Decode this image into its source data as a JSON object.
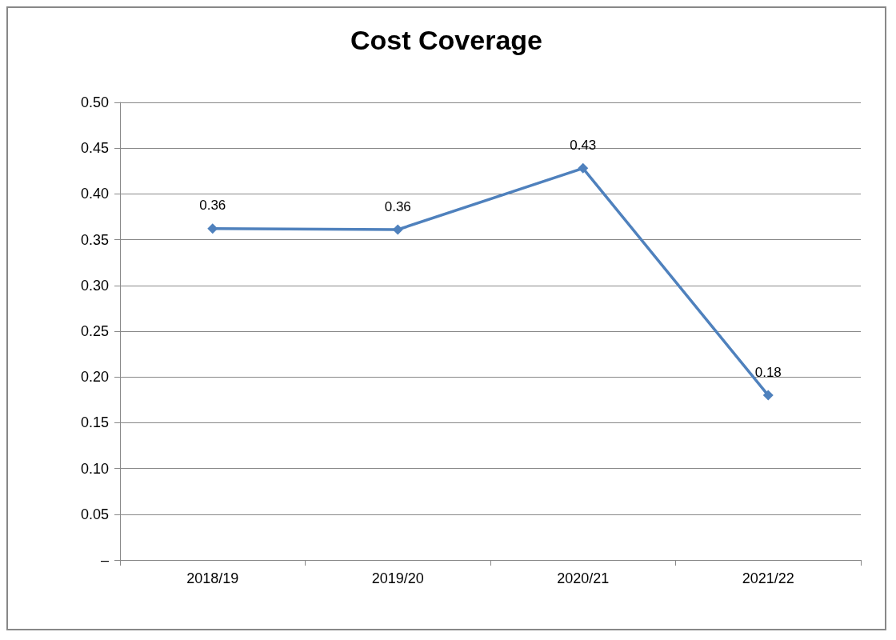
{
  "chart_data": {
    "type": "line",
    "title": "Cost Coverage",
    "categories": [
      "2018/19",
      "2019/20",
      "2020/21",
      "2021/22"
    ],
    "series": [
      {
        "color": "#4f81bd",
        "values": [
          0.362,
          0.361,
          0.428,
          0.18
        ],
        "value_labels": [
          "0.36",
          "0.36",
          "0.43",
          "0.18"
        ]
      }
    ],
    "ylim": [
      0,
      0.5
    ],
    "yticks": [
      {
        "value": 0,
        "label": "–"
      },
      {
        "value": 0.05,
        "label": "0.05"
      },
      {
        "value": 0.1,
        "label": "0.10"
      },
      {
        "value": 0.15,
        "label": "0.15"
      },
      {
        "value": 0.2,
        "label": "0.20"
      },
      {
        "value": 0.25,
        "label": "0.25"
      },
      {
        "value": 0.3,
        "label": "0.30"
      },
      {
        "value": 0.35,
        "label": "0.35"
      },
      {
        "value": 0.4,
        "label": "0.40"
      },
      {
        "value": 0.45,
        "label": "0.45"
      },
      {
        "value": 0.5,
        "label": "0.50"
      }
    ],
    "grid": "y",
    "marker": "diamond",
    "line_style": "solid"
  }
}
